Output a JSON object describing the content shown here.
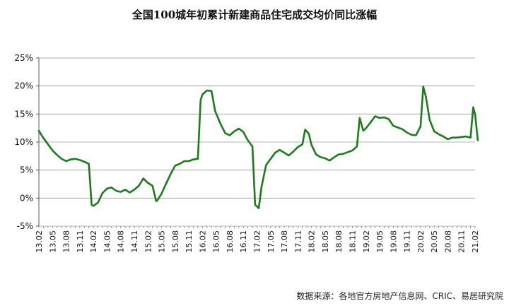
{
  "chart_data": {
    "type": "line",
    "title": "全国100城年初累计新建商品住宅成交均价同比涨幅",
    "xlabel": "",
    "ylabel": "",
    "ylim": [
      -5,
      25
    ],
    "yticks": [
      -5,
      0,
      5,
      10,
      15,
      20,
      25
    ],
    "ytick_labels": [
      "-5%",
      "0%",
      "5%",
      "10%",
      "15%",
      "20%",
      "25%"
    ],
    "xtick_labels": [
      "13.02",
      "13.05",
      "13.08",
      "13.11",
      "14.02",
      "14.05",
      "14.08",
      "14.11",
      "15.02",
      "15.05",
      "15.08",
      "15.11",
      "16.02",
      "16.05",
      "16.08",
      "16.11",
      "17.02",
      "17.05",
      "17.08",
      "17.11",
      "18.02",
      "18.05",
      "18.08",
      "18.11",
      "19.02",
      "19.05",
      "19.08",
      "19.11",
      "20.02",
      "20.05",
      "20.08",
      "20.11",
      "21.02"
    ],
    "grid": "horizontal",
    "legend": "none",
    "series": [
      {
        "color": "#1f7a1f",
        "points": [
          [
            0,
            12.0
          ],
          [
            1,
            10.7
          ],
          [
            2,
            9.6
          ],
          [
            3,
            8.5
          ],
          [
            4,
            7.7
          ],
          [
            5,
            7.0
          ],
          [
            6,
            6.6
          ],
          [
            7,
            6.9
          ],
          [
            8,
            7.0
          ],
          [
            9,
            6.8
          ],
          [
            10,
            6.5
          ],
          [
            11,
            6.1
          ],
          [
            11.6,
            -1.2
          ],
          [
            12,
            -1.4
          ],
          [
            13,
            -0.8
          ],
          [
            14,
            0.9
          ],
          [
            15,
            1.7
          ],
          [
            16,
            1.9
          ],
          [
            17,
            1.3
          ],
          [
            18,
            1.1
          ],
          [
            19,
            1.5
          ],
          [
            20,
            1.0
          ],
          [
            21,
            1.5
          ],
          [
            22,
            2.2
          ],
          [
            23,
            3.5
          ],
          [
            24,
            2.7
          ],
          [
            25,
            2.2
          ],
          [
            25.8,
            -0.5
          ],
          [
            26,
            -0.5
          ],
          [
            27,
            0.8
          ],
          [
            28,
            2.6
          ],
          [
            29,
            4.3
          ],
          [
            30,
            5.8
          ],
          [
            31,
            6.1
          ],
          [
            32,
            6.6
          ],
          [
            33,
            6.6
          ],
          [
            34,
            6.9
          ],
          [
            35,
            7.0
          ],
          [
            35.6,
            17.5
          ],
          [
            36,
            18.5
          ],
          [
            37,
            19.2
          ],
          [
            38,
            19.1
          ],
          [
            38.8,
            15.5
          ],
          [
            40,
            13.2
          ],
          [
            41,
            11.6
          ],
          [
            42,
            11.2
          ],
          [
            43,
            11.9
          ],
          [
            44,
            12.4
          ],
          [
            45,
            11.8
          ],
          [
            46,
            10.3
          ],
          [
            47,
            9.2
          ],
          [
            47.6,
            -1.2
          ],
          [
            48.4,
            -1.8
          ],
          [
            49,
            2.0
          ],
          [
            50,
            5.9
          ],
          [
            51,
            7.0
          ],
          [
            52,
            8.1
          ],
          [
            53,
            8.6
          ],
          [
            54,
            8.1
          ],
          [
            55,
            7.6
          ],
          [
            56,
            8.3
          ],
          [
            57,
            9.1
          ],
          [
            58,
            9.6
          ],
          [
            58.6,
            12.2
          ],
          [
            59.4,
            11.5
          ],
          [
            60,
            9.5
          ],
          [
            61,
            7.8
          ],
          [
            62,
            7.3
          ],
          [
            63,
            7.1
          ],
          [
            64,
            6.7
          ],
          [
            65,
            7.3
          ],
          [
            66,
            7.8
          ],
          [
            67,
            7.9
          ],
          [
            68,
            8.2
          ],
          [
            69,
            8.5
          ],
          [
            70,
            9.2
          ],
          [
            70.6,
            14.3
          ],
          [
            71.4,
            12.0
          ],
          [
            72,
            12.5
          ],
          [
            73,
            13.5
          ],
          [
            74,
            14.6
          ],
          [
            75,
            14.3
          ],
          [
            76,
            14.4
          ],
          [
            77,
            14.1
          ],
          [
            78,
            12.9
          ],
          [
            79,
            12.6
          ],
          [
            80,
            12.3
          ],
          [
            81,
            11.7
          ],
          [
            82,
            11.3
          ],
          [
            83,
            11.2
          ],
          [
            84,
            12.8
          ],
          [
            84.6,
            19.9
          ],
          [
            85.2,
            18.0
          ],
          [
            86,
            14.0
          ],
          [
            87,
            11.9
          ],
          [
            88,
            11.4
          ],
          [
            89,
            11.0
          ],
          [
            90,
            10.5
          ],
          [
            91,
            10.8
          ],
          [
            92,
            10.8
          ],
          [
            93,
            10.9
          ],
          [
            94,
            11.0
          ],
          [
            95,
            10.8
          ],
          [
            95.6,
            16.2
          ],
          [
            96,
            15.0
          ],
          [
            96.6,
            10.3
          ]
        ]
      }
    ]
  },
  "source_note": "数据来源：各地官方房地产信息网、CRIC、易居研究院"
}
